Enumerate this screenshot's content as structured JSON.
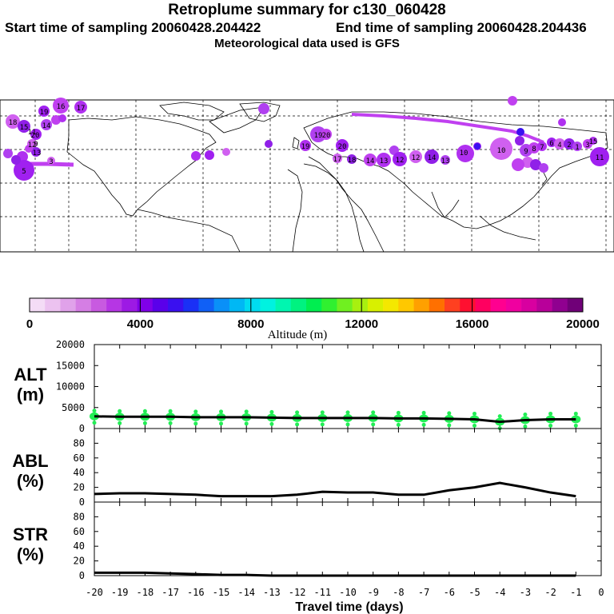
{
  "header": {
    "title": "Retroplume summary for c130_060428",
    "start_label": "Start time of sampling 20060428.204422",
    "end_label": "End time of sampling 20060428.204436",
    "met_label": "Meteorological data used is GFS"
  },
  "colorbar": {
    "label": "Altitude (m)",
    "ticks": [
      "0",
      "4000",
      "8000",
      "12000",
      "16000",
      "20000"
    ],
    "colors": [
      "#f4dcf6",
      "#ecc2f0",
      "#e0a2ea",
      "#d57ee4",
      "#c85ae0",
      "#b636e4",
      "#9d1ae4",
      "#8000e8",
      "#5a00ea",
      "#3a10f0",
      "#1a30f6",
      "#1060f6",
      "#0a90f8",
      "#00b8f4",
      "#00dcf0",
      "#00f2e0",
      "#00f6b0",
      "#00f280",
      "#00ee50",
      "#30f030",
      "#70f020",
      "#a8f010",
      "#d8f000",
      "#f4e800",
      "#ffc800",
      "#ffa000",
      "#ff7000",
      "#ff4020",
      "#ff1030",
      "#ff0060",
      "#ff0090",
      "#f000a0",
      "#d800a0",
      "#b8009a",
      "#900090",
      "#700078"
    ]
  },
  "map": {
    "labels": [
      "16",
      "17",
      "19",
      "18",
      "15",
      "14",
      "20",
      "12",
      "13",
      "5",
      "3",
      "9",
      "11",
      "19",
      "20",
      "19",
      "20",
      "17",
      "18",
      "10",
      "14",
      "13",
      "12",
      "12",
      "14",
      "13",
      "10",
      "9",
      "8",
      "7",
      "6",
      "4",
      "2",
      "1",
      "3",
      "15",
      "11"
    ]
  },
  "chart_data": [
    {
      "type": "line",
      "panel": "ALT (m)",
      "ylabel_line1": "ALT",
      "ylabel_line2": "(m)",
      "yticks": [
        "20000",
        "15000",
        "10000",
        "5000",
        "0"
      ],
      "ylim": [
        0,
        20000
      ],
      "x": [
        -20,
        -19,
        -18,
        -17,
        -16,
        -15,
        -14,
        -13,
        -12,
        -11,
        -10,
        -9,
        -8,
        -7,
        -6,
        -5,
        -4,
        -3,
        -2,
        -1
      ],
      "values": [
        2900,
        2800,
        2800,
        2800,
        2700,
        2700,
        2700,
        2600,
        2500,
        2500,
        2500,
        2500,
        2400,
        2400,
        2300,
        2200,
        1600,
        2000,
        2200,
        2200
      ],
      "marker_color": "#22ee55"
    },
    {
      "type": "line",
      "panel": "ABL (%)",
      "ylabel_line1": "ABL",
      "ylabel_line2": "(%)",
      "yticks": [
        "80",
        "60",
        "40",
        "20",
        "0"
      ],
      "ylim": [
        0,
        100
      ],
      "x": [
        -20,
        -19,
        -18,
        -17,
        -16,
        -15,
        -14,
        -13,
        -12,
        -11,
        -10,
        -9,
        -8,
        -7,
        -6,
        -5,
        -4,
        -3,
        -2,
        -1
      ],
      "values": [
        11,
        12,
        12,
        11,
        10,
        8,
        8,
        8,
        10,
        14,
        13,
        13,
        10,
        10,
        16,
        20,
        26,
        20,
        13,
        8
      ]
    },
    {
      "type": "line",
      "panel": "STR (%)",
      "ylabel_line1": "STR",
      "ylabel_line2": "(%)",
      "yticks": [
        "80",
        "60",
        "40",
        "20",
        "0"
      ],
      "ylim": [
        0,
        100
      ],
      "x": [
        -20,
        -19,
        -18,
        -17,
        -16,
        -15,
        -14,
        -13,
        -12,
        -11,
        -10,
        -9,
        -8,
        -7,
        -6,
        -5,
        -4,
        -3,
        -2,
        -1
      ],
      "values": [
        4,
        4,
        4,
        3,
        2,
        1,
        1,
        0,
        0,
        0,
        0,
        0,
        0,
        0,
        0,
        0,
        0,
        0,
        0,
        0
      ]
    }
  ],
  "xaxis": {
    "ticks": [
      "-20",
      "-19",
      "-18",
      "-17",
      "-16",
      "-15",
      "-14",
      "-13",
      "-12",
      "-11",
      "-10",
      "-9",
      "-8",
      "-7",
      "-6",
      "-5",
      "-4",
      "-3",
      "-2",
      "-1",
      "0"
    ],
    "label": "Travel time (days)"
  }
}
